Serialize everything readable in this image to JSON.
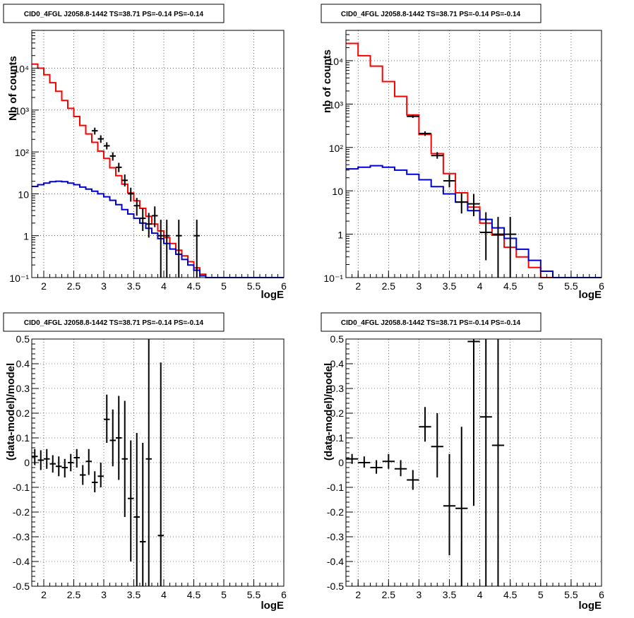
{
  "chart_data": [
    {
      "type": "step-histogram",
      "title": "CID0_4FGL J2058.8-1442 TS=38.71 PS=-0.14 PS=-0.14",
      "xlabel": "logE",
      "ylabel": "Nb of counts",
      "xlim": [
        1.8,
        6.0
      ],
      "ylim": [
        0.1,
        80000
      ],
      "yscale": "log",
      "grid": true,
      "xticks": [
        "2",
        "2.5",
        "3",
        "3.5",
        "4",
        "4.5",
        "5",
        "5.5",
        "6"
      ],
      "yticks": [
        "10⁻¹",
        "1",
        "10",
        "10²",
        "10³",
        "10⁴"
      ],
      "bin_width": 0.1,
      "series": [
        {
          "color": "#ff0000",
          "kind": "model_total",
          "x_low": [
            1.8,
            1.9,
            2.0,
            2.1,
            2.2,
            2.3,
            2.4,
            2.5,
            2.6,
            2.7,
            2.8,
            2.9,
            3.0,
            3.1,
            3.2,
            3.3,
            3.4,
            3.5,
            3.6,
            3.7,
            3.8,
            3.9,
            4.0,
            4.1,
            4.2,
            4.3,
            4.4,
            4.5,
            4.6,
            4.7,
            4.8,
            4.9,
            5.0,
            5.1,
            5.2,
            5.3,
            5.4,
            5.5,
            5.6,
            5.7,
            5.8,
            5.9
          ],
          "values": [
            12500,
            10000,
            7000,
            4500,
            2800,
            1700,
            1100,
            700,
            430,
            270,
            170,
            105,
            70,
            42,
            27,
            17,
            10.5,
            6.8,
            4.5,
            2.9,
            1.9,
            1.3,
            0.9,
            0.65,
            0.45,
            0.33,
            0.24,
            0.17,
            0.12,
            0.1,
            0.1,
            0.1,
            0.1,
            0.1,
            0.1,
            0.1,
            0.1,
            0.1,
            0.1,
            0.1,
            0.1,
            0.1
          ]
        },
        {
          "color": "#0000cc",
          "kind": "source_model",
          "x_low": [
            1.8,
            1.9,
            2.0,
            2.1,
            2.2,
            2.3,
            2.4,
            2.5,
            2.6,
            2.7,
            2.8,
            2.9,
            3.0,
            3.1,
            3.2,
            3.3,
            3.4,
            3.5,
            3.6,
            3.7,
            3.8,
            3.9,
            4.0,
            4.1,
            4.2,
            4.3,
            4.4,
            4.5,
            4.6,
            4.7,
            4.8,
            4.9,
            5.0,
            5.1,
            5.2,
            5.3,
            5.4,
            5.5,
            5.6,
            5.7,
            5.8,
            5.9
          ],
          "values": [
            15,
            16.5,
            18,
            19.5,
            20,
            19.5,
            18,
            16.5,
            14.5,
            13,
            11.5,
            10,
            8.5,
            7,
            5.5,
            4.2,
            3.3,
            2.6,
            2.0,
            1.5,
            1.15,
            0.85,
            0.65,
            0.48,
            0.36,
            0.27,
            0.2,
            0.15,
            0.11,
            0.1,
            0.1,
            0.1,
            0.1,
            0.1,
            0.1,
            0.1,
            0.1,
            0.1,
            0.1,
            0.1,
            0.1,
            0.1
          ]
        }
      ],
      "data_points": [
        {
          "x": 2.85,
          "y": 320,
          "ylo": 260,
          "yhi": 380
        },
        {
          "x": 2.95,
          "y": 205,
          "ylo": 165,
          "yhi": 250
        },
        {
          "x": 3.05,
          "y": 140,
          "ylo": 115,
          "yhi": 170
        },
        {
          "x": 3.15,
          "y": 80,
          "ylo": 62,
          "yhi": 98
        },
        {
          "x": 3.25,
          "y": 43,
          "ylo": 33,
          "yhi": 55
        },
        {
          "x": 3.35,
          "y": 21,
          "ylo": 15,
          "yhi": 29
        },
        {
          "x": 3.45,
          "y": 10,
          "ylo": 6.5,
          "yhi": 14
        },
        {
          "x": 3.55,
          "y": 5.2,
          "ylo": 3,
          "yhi": 8
        },
        {
          "x": 3.65,
          "y": 2.6,
          "ylo": 1.3,
          "yhi": 4.5
        },
        {
          "x": 3.75,
          "y": 1.9,
          "ylo": 0.9,
          "yhi": 3.5
        },
        {
          "x": 3.85,
          "y": 3.0,
          "ylo": 1.6,
          "yhi": 5.0
        },
        {
          "x": 3.95,
          "y": 1.0,
          "ylo": 0.1,
          "yhi": 2.4
        },
        {
          "x": 4.05,
          "y": 1.0,
          "ylo": 0.1,
          "yhi": 2.4
        },
        {
          "x": 4.25,
          "y": 1.0,
          "ylo": 0.1,
          "yhi": 2.4
        },
        {
          "x": 4.55,
          "y": 1.0,
          "ylo": 0.1,
          "yhi": 2.4
        }
      ]
    },
    {
      "type": "step-histogram",
      "title": "CID0_4FGL J2058.8-1442 TS=38.71 PS=-0.14 PS=-0.14",
      "xlabel": "logE",
      "ylabel": "nb of counts",
      "xlim": [
        1.8,
        6.0
      ],
      "ylim": [
        0.1,
        50000
      ],
      "yscale": "log",
      "grid": true,
      "xticks": [
        "2",
        "2.5",
        "3",
        "3.5",
        "4",
        "4.5",
        "5",
        "5.5",
        "6"
      ],
      "yticks": [
        "10⁻¹",
        "1",
        "10",
        "10²",
        "10³",
        "10⁴"
      ],
      "bin_width": 0.2,
      "series": [
        {
          "color": "#ff0000",
          "kind": "model_total",
          "x_low": [
            1.8,
            2.0,
            2.2,
            2.4,
            2.6,
            2.8,
            3.0,
            3.2,
            3.4,
            3.6,
            3.8,
            4.0,
            4.2,
            4.4,
            4.6,
            4.8,
            5.0,
            5.2,
            5.4,
            5.6,
            5.8
          ],
          "values": [
            25000,
            13000,
            7500,
            3300,
            1500,
            560,
            200,
            72,
            25,
            9,
            4.2,
            1.8,
            0.95,
            0.5,
            0.3,
            0.17,
            0.1,
            0.1,
            0.1,
            0.1,
            0.1
          ]
        },
        {
          "color": "#0000cc",
          "kind": "source_model",
          "x_low": [
            1.8,
            2.0,
            2.2,
            2.4,
            2.6,
            2.8,
            3.0,
            3.2,
            3.4,
            3.6,
            3.8,
            4.0,
            4.2,
            4.4,
            4.6,
            4.8,
            5.0,
            5.2,
            5.4,
            5.6,
            5.8
          ],
          "values": [
            32,
            35,
            38,
            35,
            30,
            24,
            18,
            12.5,
            8.5,
            5.5,
            3.5,
            2.2,
            1.4,
            0.8,
            0.45,
            0.25,
            0.14,
            0.1,
            0.1,
            0.1,
            0.1
          ]
        }
      ],
      "data_points": [
        {
          "x": 2.9,
          "y": 520,
          "ylo": 480,
          "yhi": 560
        },
        {
          "x": 3.1,
          "y": 210,
          "ylo": 185,
          "yhi": 235
        },
        {
          "x": 3.3,
          "y": 65,
          "ylo": 55,
          "yhi": 78
        },
        {
          "x": 3.5,
          "y": 17,
          "ylo": 12,
          "yhi": 24
        },
        {
          "x": 3.7,
          "y": 5.5,
          "ylo": 3,
          "yhi": 9
        },
        {
          "x": 3.9,
          "y": 5.0,
          "ylo": 2.6,
          "yhi": 8.5
        },
        {
          "x": 4.1,
          "y": 1.1,
          "ylo": 0.25,
          "yhi": 3.2
        },
        {
          "x": 4.3,
          "y": 1.0,
          "ylo": 0.1,
          "yhi": 2.5
        },
        {
          "x": 4.5,
          "y": 1.0,
          "ylo": 0.1,
          "yhi": 2.5
        }
      ]
    },
    {
      "type": "scatter",
      "title": "CID0_4FGL J2058.8-1442 TS=38.71 PS=-0.14 PS=-0.14",
      "xlabel": "logE",
      "ylabel": "(data-model)/model",
      "xlim": [
        1.8,
        6.0
      ],
      "ylim": [
        -0.5,
        0.5
      ],
      "yscale": "linear",
      "grid": true,
      "xticks": [
        "2",
        "2.5",
        "3",
        "3.5",
        "4",
        "4.5",
        "5",
        "5.5",
        "6"
      ],
      "yticks": [
        "-0.5",
        "-0.4",
        "-0.3",
        "-0.2",
        "-0.1",
        "0",
        "0.1",
        "0.2",
        "0.3",
        "0.4",
        "0.5"
      ],
      "points": [
        {
          "x": 1.85,
          "y": 0.025,
          "ylo": -0.01,
          "yhi": 0.055
        },
        {
          "x": 1.95,
          "y": 0.01,
          "ylo": -0.03,
          "yhi": 0.05
        },
        {
          "x": 2.05,
          "y": 0.015,
          "ylo": -0.025,
          "yhi": 0.055
        },
        {
          "x": 2.15,
          "y": -0.005,
          "ylo": -0.04,
          "yhi": 0.03
        },
        {
          "x": 2.25,
          "y": -0.015,
          "ylo": -0.055,
          "yhi": 0.025
        },
        {
          "x": 2.35,
          "y": -0.02,
          "ylo": -0.06,
          "yhi": 0.015
        },
        {
          "x": 2.45,
          "y": 0.0,
          "ylo": -0.035,
          "yhi": 0.035
        },
        {
          "x": 2.55,
          "y": 0.02,
          "ylo": -0.02,
          "yhi": 0.055
        },
        {
          "x": 2.65,
          "y": -0.05,
          "ylo": -0.09,
          "yhi": -0.01
        },
        {
          "x": 2.75,
          "y": 0.005,
          "ylo": -0.05,
          "yhi": 0.055
        },
        {
          "x": 2.85,
          "y": -0.08,
          "ylo": -0.12,
          "yhi": -0.035
        },
        {
          "x": 2.95,
          "y": -0.055,
          "ylo": -0.1,
          "yhi": 0.0
        },
        {
          "x": 3.05,
          "y": 0.175,
          "ylo": 0.08,
          "yhi": 0.275
        },
        {
          "x": 3.15,
          "y": 0.09,
          "ylo": -0.015,
          "yhi": 0.215
        },
        {
          "x": 3.25,
          "y": 0.1,
          "ylo": -0.07,
          "yhi": 0.27
        },
        {
          "x": 3.35,
          "y": 0.015,
          "ylo": -0.22,
          "yhi": 0.25
        },
        {
          "x": 3.45,
          "y": -0.145,
          "ylo": -0.4,
          "yhi": 0.09
        },
        {
          "x": 3.55,
          "y": -0.22,
          "ylo": -0.5,
          "yhi": 0.12
        },
        {
          "x": 3.65,
          "y": -0.32,
          "ylo": -0.5,
          "yhi": 0.08
        },
        {
          "x": 3.75,
          "y": 0.015,
          "ylo": -0.5,
          "yhi": 0.5
        },
        {
          "x": 3.95,
          "y": -0.295,
          "ylo": -0.5,
          "yhi": 0.405
        }
      ]
    },
    {
      "type": "scatter",
      "title": "CID0_4FGL J2058.8-1442 TS=38.71 PS=-0.14 PS=-0.14",
      "xlabel": "logE",
      "ylabel": "(data-model)/model",
      "xlim": [
        1.8,
        6.0
      ],
      "ylim": [
        -0.5,
        0.5
      ],
      "yscale": "linear",
      "grid": true,
      "xticks": [
        "2",
        "2.5",
        "3",
        "3.5",
        "4",
        "4.5",
        "5",
        "5.5",
        "6"
      ],
      "yticks": [
        "-0.5",
        "-0.4",
        "-0.3",
        "-0.2",
        "-0.1",
        "0",
        "0.1",
        "0.2",
        "0.3",
        "0.4",
        "0.5"
      ],
      "points": [
        {
          "x": 1.9,
          "y": 0.015,
          "ylo": -0.005,
          "yhi": 0.035
        },
        {
          "x": 2.1,
          "y": 0.0,
          "ylo": -0.02,
          "yhi": 0.025
        },
        {
          "x": 2.3,
          "y": -0.02,
          "ylo": -0.045,
          "yhi": 0.01
        },
        {
          "x": 2.5,
          "y": 0.005,
          "ylo": -0.025,
          "yhi": 0.035
        },
        {
          "x": 2.7,
          "y": -0.025,
          "ylo": -0.055,
          "yhi": 0.01
        },
        {
          "x": 2.9,
          "y": -0.07,
          "ylo": -0.11,
          "yhi": -0.03
        },
        {
          "x": 3.1,
          "y": 0.145,
          "ylo": 0.085,
          "yhi": 0.225
        },
        {
          "x": 3.3,
          "y": 0.065,
          "ylo": -0.06,
          "yhi": 0.2
        },
        {
          "x": 3.5,
          "y": -0.175,
          "ylo": -0.375,
          "yhi": 0.035
        },
        {
          "x": 3.7,
          "y": -0.185,
          "ylo": -0.5,
          "yhi": 0.145
        },
        {
          "x": 3.9,
          "y": 0.49,
          "ylo": -0.175,
          "yhi": 0.5
        },
        {
          "x": 4.1,
          "y": 0.185,
          "ylo": -0.5,
          "yhi": 0.5
        },
        {
          "x": 4.3,
          "y": 0.07,
          "ylo": -0.5,
          "yhi": 0.5
        }
      ]
    }
  ]
}
